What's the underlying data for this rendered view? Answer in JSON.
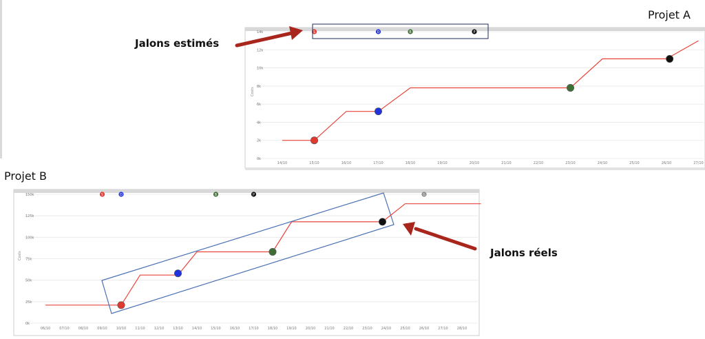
{
  "annotations": {
    "project_a_title": "Projet A",
    "project_b_title": "Projet B",
    "estimated_label": "Jalons estimés",
    "actual_label": "Jalons réels"
  },
  "colors": {
    "line": "#e8443a",
    "grid": "#e6e6e6",
    "top_band": "#d8d8d8",
    "highlight_a": "#1e2a5a",
    "highlight_b": "#4a6fb5",
    "arrow": "#a8261c"
  },
  "chart_data": [
    {
      "type": "line",
      "title": "Projet A",
      "xlabel": "",
      "ylabel": "Costs",
      "categories": [
        "14/10",
        "15/10",
        "16/10",
        "17/10",
        "18/10",
        "19/10",
        "20/10",
        "21/10",
        "22/10",
        "23/10",
        "24/10",
        "25/10",
        "26/10",
        "27/10"
      ],
      "yticks": [
        "0k",
        "2k",
        "4k",
        "6k",
        "8k",
        "10k",
        "12k",
        "14k"
      ],
      "ylim": [
        0,
        14
      ],
      "series": [
        {
          "points": [
            [
              0,
              2
            ],
            [
              1,
              2
            ],
            [
              2,
              5.2
            ],
            [
              3,
              5.2
            ],
            [
              4,
              7.8
            ],
            [
              9,
              7.8
            ],
            [
              10,
              11
            ],
            [
              12,
              11
            ],
            [
              13,
              13
            ]
          ]
        }
      ],
      "milestones": [
        {
          "x": 1,
          "y": 2,
          "color": "#e0392f"
        },
        {
          "x": 3,
          "y": 5.2,
          "color": "#2233dd"
        },
        {
          "x": 9,
          "y": 7.8,
          "color": "#3f6e35"
        },
        {
          "x": 12.1,
          "y": 11,
          "color": "#111111"
        }
      ],
      "top_markers": [
        {
          "x": 1,
          "color": "#e0392f",
          "label": "S"
        },
        {
          "x": 3,
          "color": "#2233dd",
          "label": "D"
        },
        {
          "x": 4,
          "color": "#3f6e35",
          "label": "B"
        },
        {
          "x": 6,
          "color": "#111111",
          "label": "P"
        }
      ]
    },
    {
      "type": "line",
      "title": "Projet B",
      "xlabel": "",
      "ylabel": "Costs",
      "categories": [
        "06/10",
        "07/10",
        "08/10",
        "09/10",
        "10/10",
        "11/10",
        "12/10",
        "13/10",
        "14/10",
        "15/10",
        "16/10",
        "17/10",
        "18/10",
        "19/10",
        "20/10",
        "21/10",
        "22/10",
        "23/10",
        "24/10",
        "25/10",
        "26/10",
        "27/10",
        "28/10"
      ],
      "yticks": [
        "0k",
        "25k",
        "50k",
        "75k",
        "100k",
        "125k",
        "150k"
      ],
      "ylim": [
        0,
        150
      ],
      "series": [
        {
          "points": [
            [
              0,
              21
            ],
            [
              4,
              21
            ],
            [
              5,
              56
            ],
            [
              7,
              56
            ],
            [
              8,
              83
            ],
            [
              12,
              83
            ],
            [
              13,
              118
            ],
            [
              17.8,
              118
            ],
            [
              19,
              139
            ],
            [
              23,
              139
            ]
          ]
        }
      ],
      "milestones": [
        {
          "x": 4,
          "y": 21,
          "color": "#e0392f"
        },
        {
          "x": 7,
          "y": 58,
          "color": "#2233dd"
        },
        {
          "x": 12,
          "y": 83,
          "color": "#3f6e35"
        },
        {
          "x": 17.8,
          "y": 118,
          "color": "#111111"
        }
      ],
      "top_markers": [
        {
          "x": 3,
          "color": "#e0392f",
          "label": "S"
        },
        {
          "x": 4,
          "color": "#2233dd",
          "label": "D"
        },
        {
          "x": 9,
          "color": "#3f6e35",
          "label": "B"
        },
        {
          "x": 11,
          "color": "#111111",
          "label": "P"
        },
        {
          "x": 20,
          "color": "#888888",
          "label": "G"
        }
      ]
    }
  ]
}
